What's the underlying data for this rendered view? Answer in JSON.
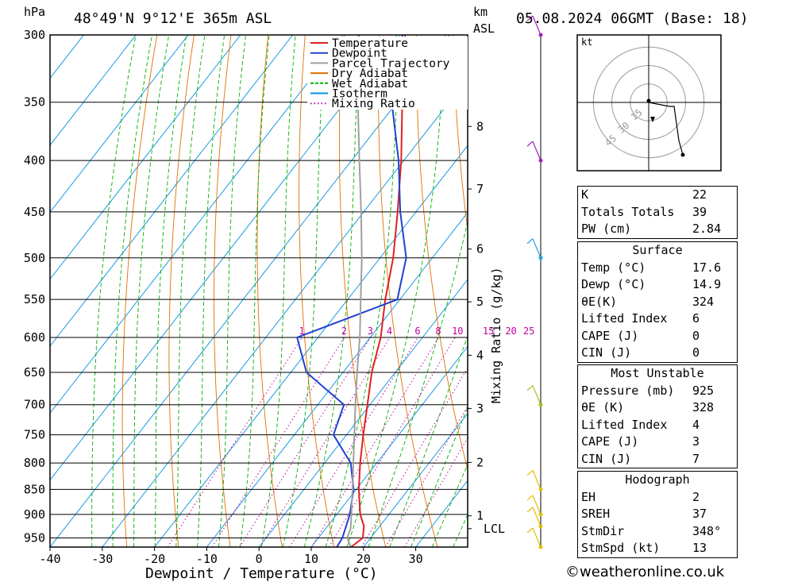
{
  "header": {
    "location": "48°49'N  9°12'E  365m  ASL",
    "datetime": "05.08.2024  06GMT  (Base: 18)",
    "pressure_unit": "hPa",
    "height_unit_1": "km",
    "height_unit_2": "ASL"
  },
  "legend": [
    {
      "label": "Temperature",
      "color": "#e02020",
      "style": "solid"
    },
    {
      "label": "Dewpoint",
      "color": "#2040d0",
      "style": "solid"
    },
    {
      "label": "Parcel Trajectory",
      "color": "#a0a0a0",
      "style": "solid"
    },
    {
      "label": "Dry Adiabat",
      "color": "#e07000",
      "style": "solid"
    },
    {
      "label": "Wet Adiabat",
      "color": "#00b000",
      "style": "dashed"
    },
    {
      "label": "Isotherm",
      "color": "#0090e0",
      "style": "solid"
    },
    {
      "label": "Mixing Ratio",
      "color": "#c000a0",
      "style": "dotted"
    }
  ],
  "chart_data": {
    "type": "line",
    "xlabel": "Dewpoint / Temperature (°C)",
    "ylabel": "hPa",
    "mixing_ratio_label": "Mixing Ratio (g/kg)",
    "x_ticks": [
      -40,
      -30,
      -20,
      -10,
      0,
      10,
      20,
      30
    ],
    "pressure_ticks": [
      300,
      350,
      400,
      450,
      500,
      550,
      600,
      650,
      700,
      750,
      800,
      850,
      900,
      950
    ],
    "ylim": [
      970,
      300
    ],
    "xlim": [
      -40,
      40
    ],
    "height_ticks_km": [
      {
        "label": "8",
        "p": 370
      },
      {
        "label": "7",
        "p": 427
      },
      {
        "label": "6",
        "p": 490
      },
      {
        "label": "5",
        "p": 553
      },
      {
        "label": "4",
        "p": 625
      },
      {
        "label": "3",
        "p": 706
      },
      {
        "label": "2",
        "p": 799
      },
      {
        "label": "1",
        "p": 903
      },
      {
        "label": "LCL",
        "p": 930
      }
    ],
    "mixing_ratio_values": [
      "1",
      "2",
      "3",
      "4",
      "6",
      "8",
      "10",
      "15",
      "20",
      "25"
    ],
    "series": [
      {
        "name": "Temperature",
        "color": "#e02020",
        "points": [
          {
            "p": 970,
            "t": 17.6
          },
          {
            "p": 950,
            "t": 18.5
          },
          {
            "p": 925,
            "t": 17.0
          },
          {
            "p": 900,
            "t": 14.5
          },
          {
            "p": 850,
            "t": 10.5
          },
          {
            "p": 800,
            "t": 6.8
          },
          {
            "p": 750,
            "t": 3.2
          },
          {
            "p": 700,
            "t": -0.5
          },
          {
            "p": 650,
            "t": -4.5
          },
          {
            "p": 600,
            "t": -8.0
          },
          {
            "p": 550,
            "t": -12.8
          },
          {
            "p": 500,
            "t": -17.5
          },
          {
            "p": 450,
            "t": -23.5
          },
          {
            "p": 400,
            "t": -30.5
          },
          {
            "p": 350,
            "t": -39.0
          },
          {
            "p": 300,
            "t": -48.5
          }
        ]
      },
      {
        "name": "Dewpoint",
        "color": "#2040d0",
        "points": [
          {
            "p": 970,
            "t": 14.9
          },
          {
            "p": 950,
            "t": 14.6
          },
          {
            "p": 900,
            "t": 12.5
          },
          {
            "p": 850,
            "t": 9.5
          },
          {
            "p": 800,
            "t": 5.0
          },
          {
            "p": 750,
            "t": -2.5
          },
          {
            "p": 700,
            "t": -5.0
          },
          {
            "p": 650,
            "t": -17.0
          },
          {
            "p": 600,
            "t": -24.0
          },
          {
            "p": 550,
            "t": -10.5
          },
          {
            "p": 500,
            "t": -15.0
          },
          {
            "p": 450,
            "t": -23.0
          },
          {
            "p": 400,
            "t": -31.0
          },
          {
            "p": 350,
            "t": -41.0
          },
          {
            "p": 300,
            "t": -49.0
          }
        ]
      },
      {
        "name": "Parcel Trajectory",
        "color": "#a0a0a0",
        "points": [
          {
            "p": 970,
            "t": 17.6
          },
          {
            "p": 950,
            "t": 15.5
          },
          {
            "p": 930,
            "t": 14.8
          },
          {
            "p": 900,
            "t": 12.8
          },
          {
            "p": 850,
            "t": 9.3
          },
          {
            "p": 800,
            "t": 5.5
          },
          {
            "p": 750,
            "t": 1.5
          },
          {
            "p": 700,
            "t": -2.8
          },
          {
            "p": 650,
            "t": -7.3
          },
          {
            "p": 600,
            "t": -12.0
          },
          {
            "p": 550,
            "t": -17.5
          },
          {
            "p": 500,
            "t": -23.5
          },
          {
            "p": 450,
            "t": -30.5
          },
          {
            "p": 400,
            "t": -38.5
          },
          {
            "p": 350,
            "t": -47.5
          },
          {
            "p": 300,
            "t": -57.5
          }
        ]
      }
    ],
    "wind_barbs": [
      {
        "p": 300,
        "color": "#a020c0"
      },
      {
        "p": 400,
        "color": "#a020c0"
      },
      {
        "p": 500,
        "color": "#20a0e0"
      },
      {
        "p": 700,
        "color": "#a0c020"
      },
      {
        "p": 850,
        "color": "#e0c000"
      },
      {
        "p": 900,
        "color": "#e0c000"
      },
      {
        "p": 925,
        "color": "#e0c000"
      },
      {
        "p": 970,
        "color": "#e0c000"
      }
    ]
  },
  "hodograph": {
    "unit": "kt",
    "rings": [
      "15",
      "30",
      "45"
    ]
  },
  "indices": {
    "basic": [
      {
        "label": "K",
        "value": "22"
      },
      {
        "label": "Totals Totals",
        "value": "39"
      },
      {
        "label": "PW (cm)",
        "value": "2.84"
      }
    ],
    "surface": {
      "title": "Surface",
      "rows": [
        {
          "label": "Temp (°C)",
          "value": "17.6"
        },
        {
          "label": "Dewp (°C)",
          "value": "14.9"
        },
        {
          "label": "θE(K)",
          "value": "324"
        },
        {
          "label": "Lifted Index",
          "value": "6"
        },
        {
          "label": "CAPE (J)",
          "value": "0"
        },
        {
          "label": "CIN (J)",
          "value": "0"
        }
      ]
    },
    "most_unstable": {
      "title": "Most Unstable",
      "rows": [
        {
          "label": "Pressure (mb)",
          "value": "925"
        },
        {
          "label": "θE (K)",
          "value": "328"
        },
        {
          "label": "Lifted Index",
          "value": "4"
        },
        {
          "label": "CAPE (J)",
          "value": "3"
        },
        {
          "label": "CIN (J)",
          "value": "7"
        }
      ]
    },
    "hodograph": {
      "title": "Hodograph",
      "rows": [
        {
          "label": "EH",
          "value": "2"
        },
        {
          "label": "SREH",
          "value": "37"
        },
        {
          "label": "StmDir",
          "value": "348°"
        },
        {
          "label": "StmSpd (kt)",
          "value": "13"
        }
      ]
    }
  },
  "footer": "©weatheronline.co.uk"
}
